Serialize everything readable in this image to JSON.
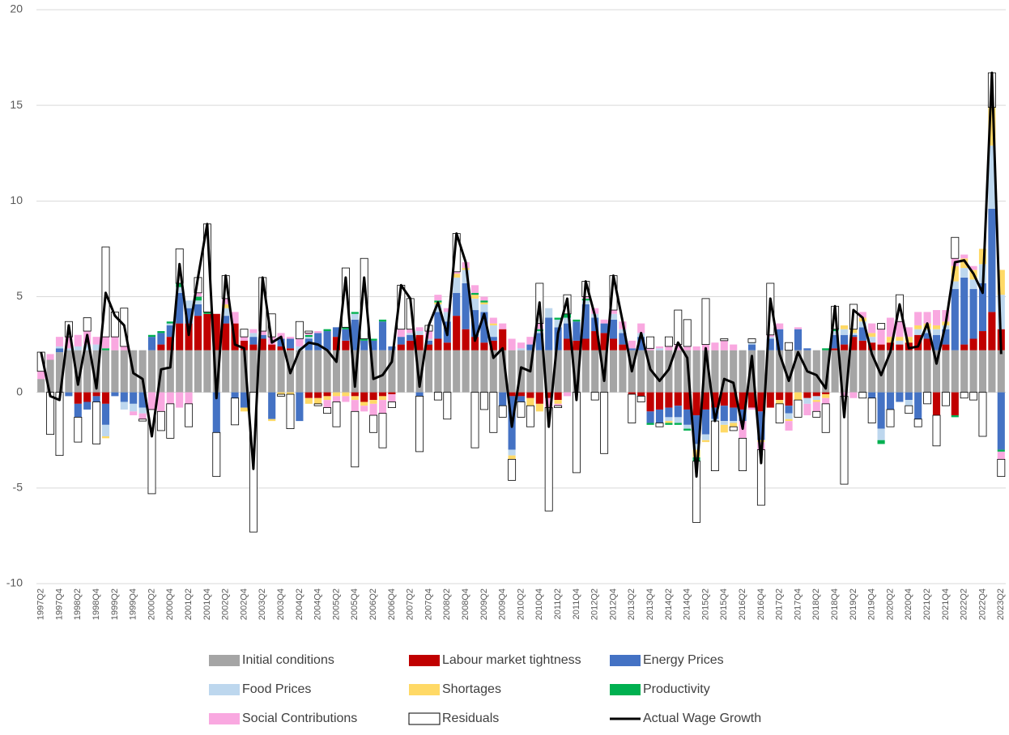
{
  "chart_data": {
    "type": "bar",
    "stacked": true,
    "categories": [
      "1997Q2",
      null,
      "1997Q4",
      null,
      "1998Q2",
      null,
      "1998Q4",
      null,
      "1999Q2",
      null,
      "1999Q4",
      null,
      "2000Q2",
      null,
      "2000Q4",
      null,
      "2001Q2",
      null,
      "2001Q4",
      null,
      "2002Q2",
      null,
      "2002Q4",
      null,
      "2003Q2",
      null,
      "2003Q4",
      null,
      "2004Q2",
      null,
      "2004Q4",
      null,
      "2005Q2",
      null,
      "2005Q4",
      null,
      "2006Q2",
      null,
      "2006Q4",
      null,
      "2007Q2",
      null,
      "2007Q4",
      null,
      "2008Q2",
      null,
      "2008Q4",
      null,
      "2009Q2",
      null,
      "2009Q4",
      null,
      "2010Q2",
      null,
      "2010Q4",
      null,
      "2011Q2",
      null,
      "2011Q4",
      null,
      "2012Q2",
      null,
      "2012Q4",
      null,
      "2013Q2",
      null,
      "2013Q4",
      null,
      "2014Q2",
      null,
      "2014Q4",
      null,
      "2015Q2",
      null,
      "2015Q4",
      null,
      "2016Q2",
      null,
      "2016Q4",
      null,
      "2017Q2",
      null,
      "2017Q4",
      null,
      "2018Q2",
      null,
      "2018Q4",
      null,
      "2019Q2",
      null,
      "2019Q4",
      null,
      "2020Q2",
      null,
      "2020Q4",
      null,
      "2021Q2",
      null,
      "2021Q4",
      null,
      "2022Q2",
      null,
      "2022Q4",
      null,
      "2023Q2"
    ],
    "series": [
      {
        "name": "Initial conditions",
        "color": "#a5a5a5",
        "values": [
          0.7,
          1.7,
          2.1,
          2.2,
          2.2,
          2.2,
          2.2,
          2.2,
          2.2,
          2.2,
          2.2,
          2.2,
          2.2,
          2.2,
          2.2,
          2.2,
          2.2,
          2.2,
          2.2,
          2.2,
          2.2,
          2.2,
          2.2,
          2.2,
          2.2,
          2.2,
          2.2,
          2.2,
          2.2,
          2.2,
          2.2,
          2.2,
          2.2,
          2.2,
          2.2,
          2.2,
          2.2,
          2.2,
          2.2,
          2.2,
          2.2,
          2.2,
          2.2,
          2.2,
          2.2,
          2.2,
          2.2,
          2.2,
          2.2,
          2.2,
          2.2,
          2.2,
          2.2,
          2.2,
          2.2,
          2.2,
          2.2,
          2.2,
          2.2,
          2.2,
          2.2,
          2.2,
          2.2,
          2.2,
          2.2,
          2.2,
          2.2,
          2.2,
          2.2,
          2.2,
          2.2,
          2.2,
          2.2,
          2.2,
          2.2,
          2.2,
          2.2,
          2.2,
          2.2,
          2.2,
          2.2,
          2.2,
          2.2,
          2.2,
          2.2,
          2.2,
          2.2,
          2.2,
          2.2,
          2.2,
          2.2,
          2.2,
          2.2,
          2.2,
          2.2,
          2.2,
          2.2,
          2.2,
          2.2,
          2.2,
          2.2,
          2.2,
          2.2,
          2.2,
          2.2
        ]
      },
      {
        "name": "Labour market tightness",
        "color": "#c00000",
        "values": [
          0,
          0,
          0,
          0,
          -0.6,
          -0.5,
          -0.2,
          -0.6,
          0,
          0,
          0,
          0,
          0,
          0.3,
          0.7,
          1.4,
          1.4,
          1.8,
          1.9,
          1.9,
          1.4,
          1.4,
          0.5,
          0.3,
          0.6,
          0.3,
          0.2,
          0.1,
          0,
          -0.3,
          -0.3,
          -0.2,
          0.7,
          0.5,
          -0.2,
          -0.5,
          -0.4,
          -0.2,
          -0.1,
          0.3,
          0.5,
          0.8,
          0.3,
          0.6,
          0.4,
          1.8,
          1.1,
          0.7,
          0.4,
          0.5,
          1.1,
          -0.2,
          -0.2,
          -0.3,
          -0.6,
          -0.3,
          -0.4,
          0.6,
          0.5,
          0.6,
          1.0,
          0.9,
          0.6,
          0.3,
          -0.1,
          -0.2,
          -1.0,
          -0.9,
          -0.8,
          -0.7,
          -0.9,
          -1.2,
          -0.9,
          -0.8,
          -0.7,
          -0.8,
          -0.9,
          -0.8,
          -1.0,
          -0.8,
          -0.4,
          -0.7,
          0,
          -0.3,
          -0.2,
          -0.1,
          0.1,
          0.3,
          0.7,
          0.5,
          0.4,
          0.3,
          0.4,
          0.3,
          0.4,
          0.8,
          0.6,
          -1.2,
          0.3,
          -1.2,
          0.3,
          0.6,
          1.0,
          2.0,
          1.1
        ]
      },
      {
        "name": "Energy Prices",
        "color": "#4472c4",
        "values": [
          0,
          0,
          0.2,
          -0.2,
          -0.7,
          -0.4,
          -0.3,
          -1.1,
          -0.2,
          -0.5,
          -0.6,
          -0.8,
          0.7,
          0.6,
          0.6,
          1.6,
          0.8,
          0.6,
          0,
          -2.1,
          0.4,
          -0.3,
          -0.8,
          0.4,
          0.2,
          -1.4,
          0.4,
          0.5,
          -1.5,
          0.6,
          0.9,
          1.0,
          0.5,
          0.6,
          1.6,
          0.5,
          0.5,
          1.5,
          0.2,
          0.4,
          0.3,
          -0.2,
          0.2,
          1.4,
          1.1,
          1.2,
          2.4,
          1.4,
          1.6,
          0.2,
          -0.7,
          -2.8,
          -0.3,
          0.3,
          0.9,
          1.7,
          1.2,
          0.8,
          1.0,
          1.8,
          0.7,
          0.5,
          1.0,
          0.6,
          0.1,
          0.7,
          -0.6,
          -0.7,
          -0.5,
          -0.6,
          -0.8,
          -1.5,
          -1.3,
          -0.6,
          -0.8,
          -0.7,
          -0.6,
          0.3,
          -1.5,
          0.6,
          1.1,
          -0.4,
          1.1,
          0.1,
          0,
          0,
          0.7,
          0.5,
          0.1,
          0.7,
          -0.3,
          -1.9,
          -0.9,
          -0.5,
          -0.4,
          -1.4,
          0.3,
          0.8,
          0.8,
          3.2,
          3.5,
          2.6,
          2.5,
          5.4,
          -3.0
        ]
      },
      {
        "name": "Food Prices",
        "color": "#bdd7ee",
        "values": [
          0,
          0,
          0.1,
          0.1,
          0.2,
          0.3,
          0.3,
          -0.6,
          0,
          -0.4,
          -0.4,
          -0.3,
          0,
          0,
          0.1,
          0.3,
          0.4,
          0.2,
          0,
          0,
          0.4,
          0,
          0,
          0.2,
          0,
          0,
          0,
          0,
          0.2,
          0.1,
          0,
          0,
          0,
          0,
          0.3,
          0,
          0,
          0,
          0,
          0,
          0.1,
          0.2,
          0.1,
          0.4,
          0.5,
          0.8,
          0.7,
          0.6,
          0.4,
          0.6,
          0,
          -0.3,
          0.1,
          0,
          0.1,
          0.5,
          0.4,
          0.3,
          0,
          0.2,
          0.2,
          0,
          0.3,
          0.2,
          0,
          0.2,
          0,
          0.1,
          -0.2,
          -0.3,
          -0.2,
          -0.3,
          -0.3,
          -0.1,
          -0.2,
          -0.1,
          0,
          0.1,
          0,
          0.1,
          0,
          -0.3,
          0,
          -0.3,
          -0.2,
          0,
          0.2,
          0.3,
          0.1,
          0.3,
          0.3,
          -0.6,
          0,
          0.2,
          -0.3,
          0.3,
          0.2,
          0.3,
          0.2,
          0.4,
          0.5,
          0.5,
          1.0,
          3.3,
          1.8
        ]
      },
      {
        "name": "Shortages",
        "color": "#ffd966",
        "values": [
          0,
          0,
          0,
          0,
          0,
          0,
          0,
          -0.1,
          0,
          0,
          0,
          0,
          0,
          0,
          0,
          0,
          0,
          0,
          0,
          0,
          0.2,
          0,
          -0.2,
          0,
          0,
          -0.1,
          -0.1,
          -0.1,
          0,
          -0.3,
          -0.3,
          -0.2,
          -0.2,
          -0.2,
          -0.2,
          -0.2,
          -0.2,
          -0.2,
          0,
          0,
          0,
          0,
          0,
          0.1,
          0,
          0.2,
          0.1,
          0.2,
          0.1,
          0.1,
          0,
          -0.2,
          0,
          -0.4,
          -0.4,
          0,
          -0.2,
          0,
          0,
          0,
          0,
          0,
          0,
          0,
          0,
          0,
          0,
          0,
          -0.1,
          0,
          0,
          -0.4,
          -0.1,
          0,
          -0.4,
          -0.2,
          0,
          0,
          -0.1,
          0,
          -0.2,
          -0.1,
          -0.4,
          0,
          -0.1,
          -0.2,
          0,
          0.2,
          0.2,
          0.2,
          0.2,
          0,
          0.3,
          0.2,
          0.3,
          0.2,
          0.3,
          0.2,
          0.2,
          0.8,
          0.5,
          0.5,
          0.8,
          2.0,
          1.3
        ]
      },
      {
        "name": "Productivity",
        "color": "#00b050",
        "values": [
          0,
          0,
          0,
          0,
          0,
          0,
          0,
          0.1,
          0,
          0,
          0,
          0,
          0.1,
          0.1,
          0.1,
          0.2,
          0,
          0.2,
          0.1,
          0,
          0,
          0,
          0,
          0,
          0,
          0,
          0,
          0,
          0,
          0.1,
          0,
          0.1,
          0,
          0.1,
          0.1,
          0.1,
          0.1,
          0.1,
          0,
          0,
          0,
          0,
          0,
          0.1,
          0,
          0,
          0,
          0.1,
          0.1,
          0,
          0,
          0,
          0,
          0,
          0.1,
          0,
          0.1,
          0.2,
          0.1,
          0.1,
          0,
          0,
          0,
          0,
          0,
          0,
          -0.1,
          0,
          -0.1,
          -0.1,
          -0.1,
          -0.2,
          0,
          0,
          0,
          0,
          0,
          0,
          0,
          0,
          0,
          0,
          0,
          0,
          0,
          0.1,
          0.1,
          0,
          0,
          0,
          0,
          -0.2,
          0,
          0,
          0,
          0,
          0,
          0,
          0,
          -0.1,
          0,
          0,
          0,
          0,
          -0.1
        ]
      },
      {
        "name": "Social Contributions",
        "color": "#f9a8e0",
        "values": [
          0.4,
          0.3,
          0.5,
          0.6,
          0.6,
          0.7,
          0.4,
          0.6,
          0.7,
          0.2,
          -0.2,
          -0.3,
          -0.9,
          -1.0,
          -0.6,
          -0.8,
          -0.6,
          0.2,
          0,
          0,
          0.3,
          0.6,
          0.2,
          0.2,
          0.2,
          0.4,
          0.3,
          0.1,
          0.4,
          0.1,
          0.1,
          -0.4,
          -0.3,
          -0.3,
          -0.6,
          -0.3,
          -0.6,
          -0.7,
          -0.4,
          0.4,
          0.2,
          0.2,
          0.4,
          0.3,
          0.2,
          0.1,
          0.3,
          0.4,
          0.2,
          0.3,
          0.3,
          0.6,
          0.3,
          0.4,
          0.3,
          -0.5,
          -0.1,
          -0.2,
          0,
          0.1,
          0.3,
          0.2,
          0.2,
          0.4,
          0.4,
          0.5,
          0.1,
          0.1,
          0.2,
          0.3,
          0.2,
          0.2,
          0.3,
          0.4,
          0.5,
          0.3,
          -0.9,
          -0.1,
          -0.4,
          0.1,
          0.3,
          -0.5,
          0.1,
          -0.6,
          -0.5,
          -0.3,
          0,
          -0.2,
          -0.3,
          0.3,
          0.5,
          0.8,
          1.0,
          0.8,
          0.5,
          0.7,
          0.6,
          0.8,
          0.6,
          0.4,
          0.2,
          0.2,
          0,
          0,
          -0.4
        ]
      },
      {
        "name": "Residuals",
        "color": "#ffffff",
        "border": "#000000",
        "values": [
          1.0,
          -2.2,
          -3.3,
          0.8,
          -1.3,
          0.7,
          -2.2,
          4.7,
          1.3,
          2.0,
          0,
          -0.1,
          -4.4,
          -1.0,
          -1.8,
          1.8,
          -1.2,
          0.8,
          4.6,
          -2.3,
          1.2,
          -1.4,
          0.4,
          -7.3,
          2.8,
          1.2,
          -0.1,
          -1.8,
          0.9,
          0.1,
          -0.1,
          -0.3,
          -1.3,
          3.1,
          -2.9,
          4.2,
          -0.9,
          -1.8,
          -0.3,
          2.3,
          1.6,
          -2.9,
          0.3,
          -0.4,
          -1.4,
          2.0,
          0,
          -2.9,
          -0.9,
          -2.1,
          -0.6,
          -1.1,
          -0.8,
          -1.1,
          2.1,
          -5.4,
          -0.1,
          1.0,
          -4.2,
          0.8,
          -0.4,
          -3.2,
          1.8,
          0,
          -1.5,
          -0.3,
          0.6,
          -0.2,
          0.5,
          1.8,
          1.4,
          -3.2,
          2.4,
          -2.6,
          0.1,
          -0.2,
          -1.7,
          0.2,
          -2.9,
          2.7,
          -1.0,
          0.4,
          -0.9,
          0,
          -0.3,
          -1.5,
          1.2,
          -4.6,
          1.3,
          -0.3,
          -1.3,
          0.3,
          -0.9,
          1.4,
          -0.4,
          -0.4,
          -0.6,
          -1.6,
          -0.7,
          1.1,
          -0.3,
          -0.4,
          -2.3,
          1.8,
          -0.9
        ]
      },
      {
        "name": "Actual Wage Growth",
        "color": "#000000",
        "type": "line",
        "values": [
          2.1,
          -0.2,
          -0.4,
          3.5,
          0.4,
          3.0,
          0.2,
          5.2,
          4.0,
          3.5,
          1.0,
          0.7,
          -2.3,
          1.2,
          1.3,
          6.7,
          3.0,
          6.0,
          8.8,
          -0.3,
          6.1,
          2.5,
          2.3,
          -4.0,
          6.0,
          2.6,
          2.9,
          1.0,
          2.2,
          2.6,
          2.5,
          2.2,
          1.6,
          6.0,
          0.3,
          6.0,
          0.7,
          0.9,
          1.6,
          5.6,
          4.9,
          0.3,
          3.5,
          4.7,
          3.0,
          8.3,
          6.8,
          2.7,
          4.1,
          1.8,
          2.3,
          -1.8,
          1.3,
          1.1,
          4.7,
          -1.8,
          3.1,
          4.9,
          -0.4,
          5.8,
          4.0,
          0.6,
          6.1,
          3.7,
          1.1,
          3.1,
          1.2,
          0.6,
          1.2,
          2.6,
          1.8,
          -4.4,
          2.3,
          -1.5,
          0.7,
          0.5,
          -1.9,
          1.9,
          -3.7,
          4.9,
          2.0,
          0.6,
          2.1,
          1.1,
          0.9,
          0.2,
          4.5,
          -1.3,
          4.3,
          3.9,
          2.0,
          0.9,
          2.1,
          4.6,
          2.3,
          2.4,
          3.6,
          1.5,
          3.6,
          6.8,
          6.9,
          6.2,
          5.2,
          16.7,
          2.0
        ]
      }
    ],
    "ylim": [
      -10,
      20
    ],
    "yticks": [
      -10,
      -5,
      0,
      5,
      10,
      15,
      20
    ],
    "grid": true,
    "legend": "bottom"
  }
}
